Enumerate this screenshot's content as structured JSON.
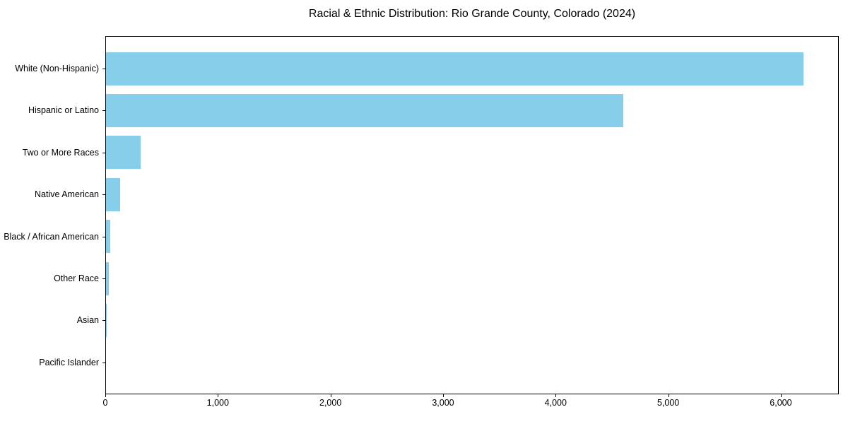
{
  "chart_data": {
    "type": "bar",
    "orientation": "horizontal",
    "title": "Racial & Ethnic Distribution: Rio Grande County, Colorado (2024)",
    "categories": [
      "White (Non-Hispanic)",
      "Hispanic or Latino",
      "Two or More Races",
      "Native American",
      "Black / African American",
      "Other Race",
      "Asian",
      "Pacific Islander"
    ],
    "values": [
      6200,
      4600,
      315,
      130,
      45,
      30,
      10,
      3
    ],
    "xlabel": "",
    "ylabel": "",
    "xlim": [
      0,
      6515
    ],
    "xticks": [
      0,
      1000,
      2000,
      3000,
      4000,
      5000,
      6000
    ],
    "xtick_labels": [
      "0",
      "1,000",
      "2,000",
      "3,000",
      "4,000",
      "5,000",
      "6,000"
    ],
    "grid": false,
    "legend": null,
    "colors": {
      "bar": "#87CEEB",
      "background": "#FFFFFF",
      "axis": "#000000",
      "text": "#000000"
    }
  }
}
